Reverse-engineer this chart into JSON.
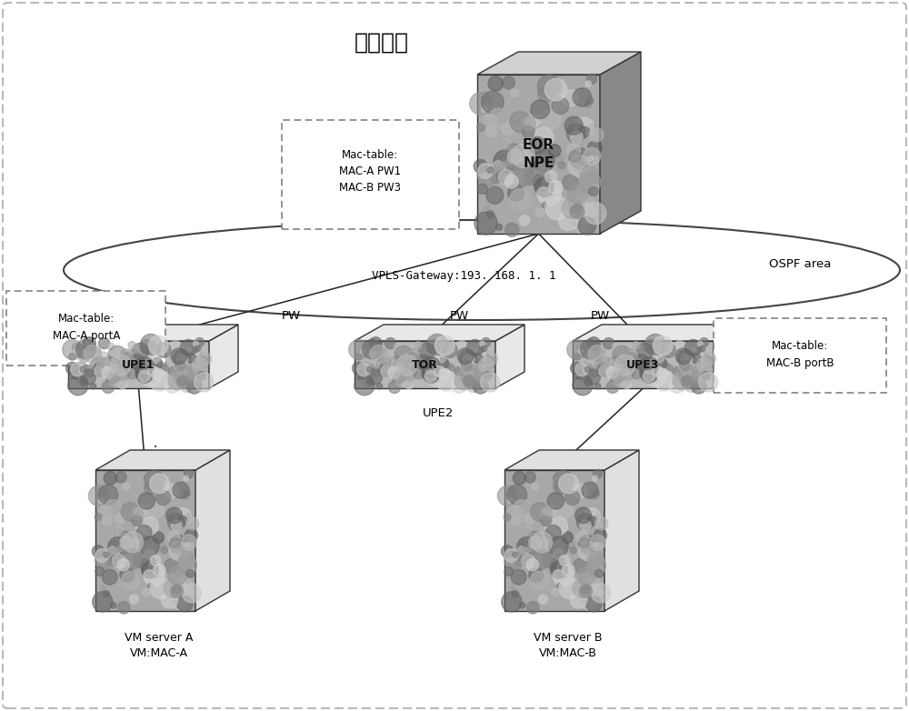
{
  "title": "数据中心",
  "bg_color": "#ffffff",
  "border_color": "#aaaaaa",
  "eor_label": "EOR\nNPE",
  "vpls_label": "VPLS-Gateway:193. 168. 1. 1",
  "ospf_label": "OSPF area",
  "upe1_label": "UPE1",
  "upe2_label": "UPE2",
  "upe3_label": "UPE3",
  "tor_label": "TOR",
  "vm_a_label": "VM server A\nVM:MAC-A",
  "vm_b_label": "VM server B\nVM:MAC-B",
  "mac_table_eor": "Mac-table:\nMAC-A PW1\nMAC-B PW3",
  "mac_table_upe1": "Mac-table:\nMAC-A portA",
  "mac_table_upe3": "Mac-table:\nMAC-B portB",
  "pw_label": "PW",
  "line_color": "#222222",
  "text_color": "#000000"
}
